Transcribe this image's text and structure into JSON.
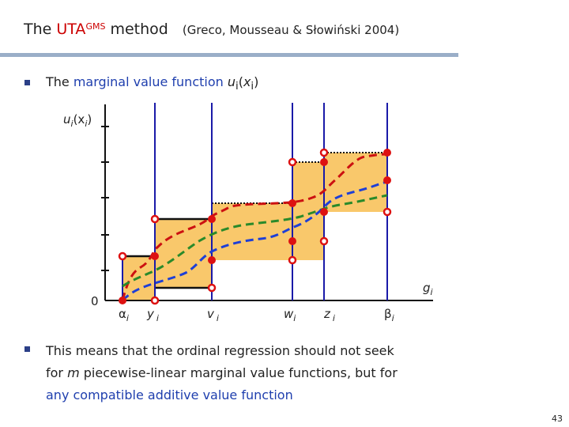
{
  "slide": {
    "title_prefix": "The ",
    "title_method": "UTA",
    "title_sup": "GMS",
    "title_suffix": " method",
    "citation": "(Greco, Mousseau & Słowiński 2004)",
    "page_number": "43"
  },
  "bullet1": {
    "text": "The ",
    "highlight": "marginal value function",
    "formula_u": "u",
    "formula_i": "i",
    "formula_open": "(",
    "formula_x": "x",
    "formula_close": ")"
  },
  "diagram": {
    "y_axis_label_u": "u",
    "y_axis_label_i": "i",
    "y_axis_label_x": "(x",
    "y_axis_label_close": ")",
    "origin_label": "0",
    "axis_label_g": "g",
    "axis_label_gi": "i",
    "ticks": [
      {
        "main": "α",
        "sub": "i"
      },
      {
        "main": "y",
        "sub": "i"
      },
      {
        "main": "v",
        "sub": "i"
      },
      {
        "main": "w",
        "sub": "i"
      },
      {
        "main": "z",
        "sub": "i"
      },
      {
        "main": "β",
        "sub": "i"
      }
    ],
    "colors": {
      "box_fill": "#f9c86b",
      "vertical_line": "#1a1aa8",
      "point": "#dd1111",
      "curve_red": "#cc1111",
      "curve_green": "#2a8a2a",
      "curve_blue": "#1e3fd6"
    }
  },
  "bullet2": {
    "line1": "This means that the ordinal regression should not seek",
    "line2_pre": "for ",
    "line2_m": "m",
    "line2_post": " piecewise-linear marginal value functions, but for",
    "line3": "any compatible additive value function"
  }
}
